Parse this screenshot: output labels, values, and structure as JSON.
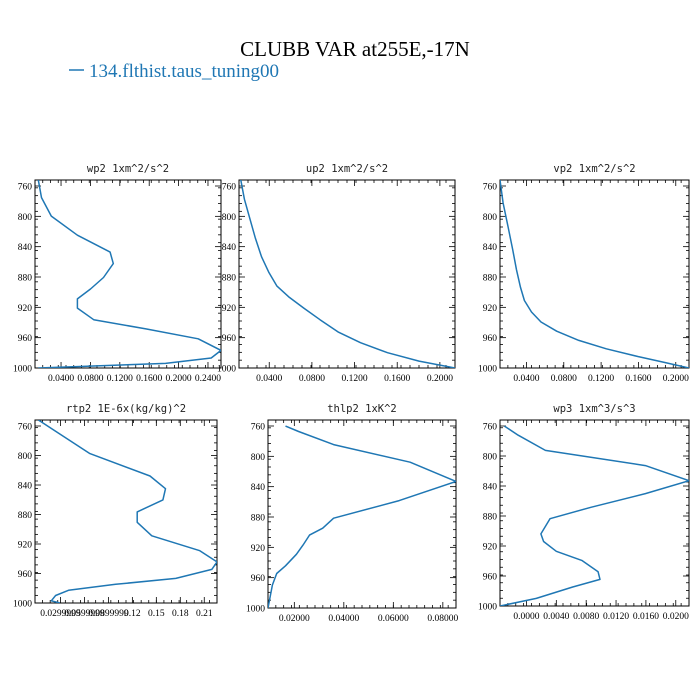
{
  "title": "CLUBB VAR at255E,-17N",
  "legend": {
    "label": "134.flthist.taus_tuning00",
    "color": "#1f77b4"
  },
  "chart_data": [
    {
      "type": "line",
      "title": "wp2  1xm^2/s^2",
      "x_ticks": [
        "0.0400",
        "0.0800",
        "0.1200",
        "0.1600",
        "0.2000",
        "0.2400"
      ],
      "y_ticks": [
        "760",
        "800",
        "840",
        "880",
        "920",
        "960",
        "1000"
      ],
      "xlim": [
        0.0,
        0.285
      ],
      "ylim": [
        1000,
        755
      ],
      "series": [
        {
          "x": [
            0.005,
            0.01,
            0.025,
            0.065,
            0.115,
            0.12,
            0.105,
            0.085,
            0.065,
            0.065,
            0.09,
            0.17,
            0.25,
            0.285,
            0.27,
            0.2,
            0.005
          ],
          "y": [
            755,
            778,
            802,
            827,
            849,
            864,
            882,
            897,
            910,
            922,
            937,
            949,
            962,
            977,
            987,
            994,
            1000
          ]
        }
      ]
    },
    {
      "type": "line",
      "title": "up2  1xm^2/s^2",
      "x_ticks": [
        "0.0400",
        "0.0800",
        "0.1200",
        "0.1600",
        "0.2000"
      ],
      "y_ticks": [
        "760",
        "800",
        "840",
        "880",
        "920",
        "960",
        "1000"
      ],
      "xlim": [
        0.0,
        0.24
      ],
      "ylim": [
        1000,
        755
      ],
      "series": [
        {
          "x": [
            0.002,
            0.006,
            0.012,
            0.018,
            0.025,
            0.033,
            0.042,
            0.056,
            0.072,
            0.09,
            0.11,
            0.135,
            0.165,
            0.2,
            0.24
          ],
          "y": [
            755,
            780,
            805,
            830,
            855,
            875,
            893,
            908,
            922,
            937,
            953,
            967,
            980,
            991,
            1000
          ]
        }
      ]
    },
    {
      "type": "line",
      "title": "vp2  1xm^2/s^2",
      "x_ticks": [
        "0.0400",
        "0.0800",
        "0.1200",
        "0.1600",
        "0.2000"
      ],
      "y_ticks": [
        "760",
        "800",
        "840",
        "880",
        "920",
        "960",
        "1000"
      ],
      "xlim": [
        0.0,
        0.24
      ],
      "ylim": [
        1000,
        755
      ],
      "series": [
        {
          "x": [
            0.0,
            0.004,
            0.01,
            0.016,
            0.021,
            0.026,
            0.031,
            0.04,
            0.052,
            0.072,
            0.1,
            0.135,
            0.175,
            0.21,
            0.24
          ],
          "y": [
            755,
            785,
            815,
            845,
            872,
            895,
            912,
            927,
            940,
            952,
            964,
            975,
            985,
            993,
            1000
          ]
        }
      ]
    },
    {
      "type": "line",
      "title": "rtp2  1E-6x(kg/kg)^2",
      "x_ticks": [
        "0.0299999",
        "0.0599999",
        "0.0899999",
        "0.12",
        "0.15",
        "0.18",
        "0.21"
      ],
      "y_ticks": [
        "760",
        "800",
        "840",
        "880",
        "920",
        "960",
        "1000"
      ],
      "xlim": [
        0.006,
        0.218
      ],
      "ylim": [
        1000,
        755
      ],
      "series": [
        {
          "x": [
            0.01,
            0.03,
            0.07,
            0.14,
            0.158,
            0.155,
            0.125,
            0.125,
            0.142,
            0.198,
            0.218,
            0.212,
            0.17,
            0.1,
            0.045,
            0.03,
            0.025,
            0.035
          ],
          "y": [
            755,
            770,
            800,
            830,
            847,
            862,
            878,
            892,
            910,
            930,
            945,
            955,
            967,
            975,
            983,
            990,
            997,
            1000
          ]
        }
      ]
    },
    {
      "type": "line",
      "title": "thlp2  1xK^2",
      "x_ticks": [
        "0.02000",
        "0.04000",
        "0.06000",
        "0.08000"
      ],
      "y_ticks": [
        "760",
        "800",
        "840",
        "880",
        "920",
        "960",
        "1000"
      ],
      "xlim": [
        0.0,
        0.086
      ],
      "ylim": [
        1000,
        755
      ],
      "series": [
        {
          "x": [
            0.008,
            0.014,
            0.03,
            0.065,
            0.086,
            0.06,
            0.03,
            0.025,
            0.019,
            0.016,
            0.013,
            0.008,
            0.004,
            0.002,
            0.001,
            0.0
          ],
          "y": [
            763,
            770,
            787,
            810,
            835,
            860,
            883,
            896,
            905,
            918,
            930,
            945,
            955,
            970,
            985,
            1000
          ]
        }
      ]
    },
    {
      "type": "line",
      "title": "wp3  1xm^3/s^3",
      "x_ticks": [
        "0.0000",
        "0.0040",
        "0.0080",
        "0.0120",
        "0.0160",
        "0.0200"
      ],
      "y_ticks": [
        "760",
        "800",
        "840",
        "880",
        "920",
        "960",
        "1000"
      ],
      "xlim": [
        0.0,
        0.0208
      ],
      "ylim": [
        1000,
        755
      ],
      "series": [
        {
          "x": [
            0.0005,
            0.002,
            0.005,
            0.016,
            0.0208,
            0.016,
            0.01,
            0.0055,
            0.0045,
            0.0048,
            0.0062,
            0.009,
            0.0108,
            0.011,
            0.008,
            0.004,
            0.0
          ],
          "y": [
            763,
            775,
            795,
            815,
            835,
            852,
            870,
            885,
            905,
            915,
            928,
            940,
            955,
            965,
            975,
            990,
            1000
          ]
        }
      ]
    }
  ]
}
